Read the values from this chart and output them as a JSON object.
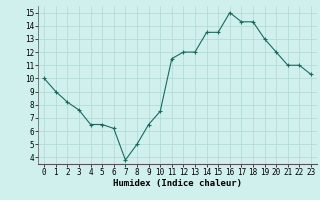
{
  "x": [
    0,
    1,
    2,
    3,
    4,
    5,
    6,
    7,
    8,
    9,
    10,
    11,
    12,
    13,
    14,
    15,
    16,
    17,
    18,
    19,
    20,
    21,
    22,
    23
  ],
  "y": [
    10,
    9,
    8.2,
    7.6,
    6.5,
    6.5,
    6.2,
    3.8,
    5.0,
    6.5,
    7.5,
    11.5,
    12.0,
    12.0,
    13.5,
    13.5,
    15.0,
    14.3,
    14.3,
    13.0,
    12.0,
    11.0,
    11.0,
    10.3
  ],
  "line_color": "#1a6b5a",
  "marker": "+",
  "marker_size": 3,
  "marker_lw": 0.8,
  "line_width": 0.8,
  "bg_color": "#d0f0ee",
  "grid_color": "#b0d8d4",
  "xlabel": "Humidex (Indice chaleur)",
  "xlabel_fontsize": 6.5,
  "tick_fontsize": 5.5,
  "xlim": [
    -0.5,
    23.5
  ],
  "ylim": [
    3.5,
    15.5
  ],
  "yticks": [
    4,
    5,
    6,
    7,
    8,
    9,
    10,
    11,
    12,
    13,
    14,
    15
  ],
  "xticks": [
    0,
    1,
    2,
    3,
    4,
    5,
    6,
    7,
    8,
    9,
    10,
    11,
    12,
    13,
    14,
    15,
    16,
    17,
    18,
    19,
    20,
    21,
    22,
    23
  ]
}
